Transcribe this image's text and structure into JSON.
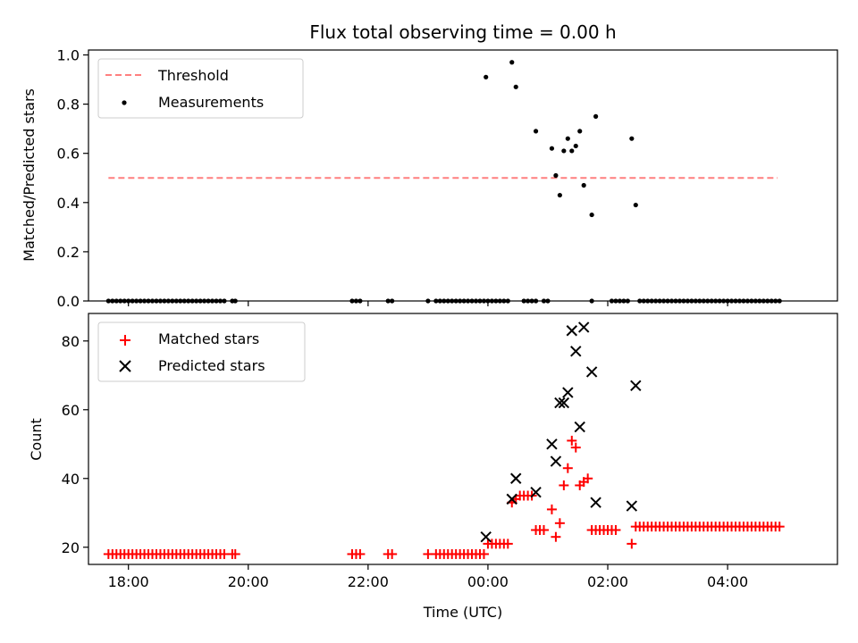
{
  "figure_title": "Flux total observing time = 0.00 h",
  "colors": {
    "threshold": "#ff7f7f",
    "measurements": "#000000",
    "matched": "#ff0000",
    "predicted": "#000000"
  },
  "chart_data": [
    {
      "type": "scatter",
      "panel": "top",
      "ylabel": "Matched/Predicted stars",
      "xlabel": "",
      "ylim": [
        0,
        1.02
      ],
      "yticks": [
        "0.0",
        "0.2",
        "0.4",
        "0.6",
        "0.8",
        "1.0"
      ],
      "xlim": [
        "17:20",
        "05:50"
      ],
      "legend_position": "top-left",
      "threshold": {
        "name": "Threshold",
        "value": 0.5,
        "x_start": "17:40",
        "x_end": "04:50",
        "style": "dashed"
      },
      "series": [
        {
          "name": "Measurements",
          "marker": "dot",
          "points": [
            [
              "17:40",
              0
            ],
            [
              "17:44",
              0
            ],
            [
              "17:48",
              0
            ],
            [
              "17:52",
              0
            ],
            [
              "17:56",
              0
            ],
            [
              "18:00",
              0
            ],
            [
              "18:04",
              0
            ],
            [
              "18:08",
              0
            ],
            [
              "18:12",
              0
            ],
            [
              "18:16",
              0
            ],
            [
              "18:20",
              0
            ],
            [
              "18:24",
              0
            ],
            [
              "18:28",
              0
            ],
            [
              "18:32",
              0
            ],
            [
              "18:36",
              0
            ],
            [
              "18:40",
              0
            ],
            [
              "18:44",
              0
            ],
            [
              "18:48",
              0
            ],
            [
              "18:52",
              0
            ],
            [
              "18:56",
              0
            ],
            [
              "19:00",
              0
            ],
            [
              "19:04",
              0
            ],
            [
              "19:08",
              0
            ],
            [
              "19:12",
              0
            ],
            [
              "19:16",
              0
            ],
            [
              "19:20",
              0
            ],
            [
              "19:24",
              0
            ],
            [
              "19:28",
              0
            ],
            [
              "19:32",
              0
            ],
            [
              "19:36",
              0
            ],
            [
              "19:44",
              0
            ],
            [
              "19:47",
              0
            ],
            [
              "21:44",
              0
            ],
            [
              "21:48",
              0
            ],
            [
              "21:52",
              0
            ],
            [
              "22:20",
              0
            ],
            [
              "22:24",
              0
            ],
            [
              "23:00",
              0
            ],
            [
              "23:08",
              0
            ],
            [
              "23:12",
              0
            ],
            [
              "23:16",
              0
            ],
            [
              "23:20",
              0
            ],
            [
              "23:24",
              0
            ],
            [
              "23:28",
              0
            ],
            [
              "23:32",
              0
            ],
            [
              "23:36",
              0
            ],
            [
              "23:40",
              0
            ],
            [
              "23:44",
              0
            ],
            [
              "23:48",
              0
            ],
            [
              "23:52",
              0
            ],
            [
              "23:56",
              0
            ],
            [
              "00:00",
              0
            ],
            [
              "00:04",
              0
            ],
            [
              "00:08",
              0
            ],
            [
              "00:12",
              0
            ],
            [
              "00:16",
              0
            ],
            [
              "00:20",
              0
            ],
            [
              "00:36",
              0
            ],
            [
              "00:40",
              0
            ],
            [
              "00:44",
              0
            ],
            [
              "00:48",
              0
            ],
            [
              "00:56",
              0
            ],
            [
              "01:00",
              0
            ],
            [
              "01:44",
              0
            ],
            [
              "02:04",
              0
            ],
            [
              "02:08",
              0
            ],
            [
              "02:12",
              0
            ],
            [
              "02:16",
              0
            ],
            [
              "02:20",
              0
            ],
            [
              "02:32",
              0
            ],
            [
              "02:36",
              0
            ],
            [
              "02:40",
              0
            ],
            [
              "02:44",
              0
            ],
            [
              "02:48",
              0
            ],
            [
              "02:52",
              0
            ],
            [
              "02:56",
              0
            ],
            [
              "03:00",
              0
            ],
            [
              "03:04",
              0
            ],
            [
              "03:08",
              0
            ],
            [
              "03:12",
              0
            ],
            [
              "03:16",
              0
            ],
            [
              "03:20",
              0
            ],
            [
              "03:24",
              0
            ],
            [
              "03:28",
              0
            ],
            [
              "03:32",
              0
            ],
            [
              "03:36",
              0
            ],
            [
              "03:40",
              0
            ],
            [
              "03:44",
              0
            ],
            [
              "03:48",
              0
            ],
            [
              "03:52",
              0
            ],
            [
              "03:56",
              0
            ],
            [
              "04:00",
              0
            ],
            [
              "04:04",
              0
            ],
            [
              "04:08",
              0
            ],
            [
              "04:12",
              0
            ],
            [
              "04:16",
              0
            ],
            [
              "04:20",
              0
            ],
            [
              "04:24",
              0
            ],
            [
              "04:28",
              0
            ],
            [
              "04:32",
              0
            ],
            [
              "04:36",
              0
            ],
            [
              "04:40",
              0
            ],
            [
              "04:44",
              0
            ],
            [
              "04:48",
              0
            ],
            [
              "04:52",
              0
            ],
            [
              "23:58",
              0.91
            ],
            [
              "00:24",
              0.97
            ],
            [
              "00:28",
              0.87
            ],
            [
              "00:48",
              0.69
            ],
            [
              "01:04",
              0.62
            ],
            [
              "01:08",
              0.51
            ],
            [
              "01:12",
              0.43
            ],
            [
              "01:16",
              0.61
            ],
            [
              "01:20",
              0.66
            ],
            [
              "01:24",
              0.61
            ],
            [
              "01:28",
              0.63
            ],
            [
              "01:32",
              0.69
            ],
            [
              "01:36",
              0.47
            ],
            [
              "01:44",
              0.35
            ],
            [
              "01:48",
              0.75
            ],
            [
              "02:24",
              0.66
            ],
            [
              "02:28",
              0.39
            ]
          ]
        }
      ]
    },
    {
      "type": "scatter",
      "panel": "bottom",
      "ylabel": "Count",
      "xlabel": "Time (UTC)",
      "ylim": [
        15,
        88
      ],
      "yticks": [
        "20",
        "40",
        "60",
        "80"
      ],
      "xlim": [
        "17:20",
        "05:50"
      ],
      "xticks": [
        "18:00",
        "20:00",
        "22:00",
        "00:00",
        "02:00",
        "04:00"
      ],
      "legend_position": "top-left",
      "series": [
        {
          "name": "Matched stars",
          "marker": "plus",
          "points": [
            [
              "17:40",
              18
            ],
            [
              "17:44",
              18
            ],
            [
              "17:48",
              18
            ],
            [
              "17:52",
              18
            ],
            [
              "17:56",
              18
            ],
            [
              "18:00",
              18
            ],
            [
              "18:04",
              18
            ],
            [
              "18:08",
              18
            ],
            [
              "18:12",
              18
            ],
            [
              "18:16",
              18
            ],
            [
              "18:20",
              18
            ],
            [
              "18:24",
              18
            ],
            [
              "18:28",
              18
            ],
            [
              "18:32",
              18
            ],
            [
              "18:36",
              18
            ],
            [
              "18:40",
              18
            ],
            [
              "18:44",
              18
            ],
            [
              "18:48",
              18
            ],
            [
              "18:52",
              18
            ],
            [
              "18:56",
              18
            ],
            [
              "19:00",
              18
            ],
            [
              "19:04",
              18
            ],
            [
              "19:08",
              18
            ],
            [
              "19:12",
              18
            ],
            [
              "19:16",
              18
            ],
            [
              "19:20",
              18
            ],
            [
              "19:24",
              18
            ],
            [
              "19:28",
              18
            ],
            [
              "19:32",
              18
            ],
            [
              "19:36",
              18
            ],
            [
              "19:44",
              18
            ],
            [
              "19:47",
              18
            ],
            [
              "21:44",
              18
            ],
            [
              "21:48",
              18
            ],
            [
              "21:52",
              18
            ],
            [
              "22:20",
              18
            ],
            [
              "22:24",
              18
            ],
            [
              "23:00",
              18
            ],
            [
              "23:08",
              18
            ],
            [
              "23:12",
              18
            ],
            [
              "23:16",
              18
            ],
            [
              "23:20",
              18
            ],
            [
              "23:24",
              18
            ],
            [
              "23:28",
              18
            ],
            [
              "23:32",
              18
            ],
            [
              "23:36",
              18
            ],
            [
              "23:40",
              18
            ],
            [
              "23:44",
              18
            ],
            [
              "23:48",
              18
            ],
            [
              "23:52",
              18
            ],
            [
              "23:56",
              18
            ],
            [
              "00:00",
              21
            ],
            [
              "00:04",
              21
            ],
            [
              "00:08",
              21
            ],
            [
              "00:12",
              21
            ],
            [
              "00:16",
              21
            ],
            [
              "00:20",
              21
            ],
            [
              "00:24",
              33
            ],
            [
              "00:28",
              34
            ],
            [
              "00:32",
              35
            ],
            [
              "00:36",
              35
            ],
            [
              "00:40",
              35
            ],
            [
              "00:44",
              35
            ],
            [
              "00:48",
              25
            ],
            [
              "00:52",
              25
            ],
            [
              "00:56",
              25
            ],
            [
              "01:04",
              31
            ],
            [
              "01:08",
              23
            ],
            [
              "01:12",
              27
            ],
            [
              "01:16",
              38
            ],
            [
              "01:20",
              43
            ],
            [
              "01:24",
              51
            ],
            [
              "01:28",
              49
            ],
            [
              "01:32",
              38
            ],
            [
              "01:36",
              39
            ],
            [
              "01:40",
              40
            ],
            [
              "01:44",
              25
            ],
            [
              "01:48",
              25
            ],
            [
              "01:52",
              25
            ],
            [
              "01:56",
              25
            ],
            [
              "02:00",
              25
            ],
            [
              "02:04",
              25
            ],
            [
              "02:08",
              25
            ],
            [
              "02:24",
              21
            ],
            [
              "02:28",
              26
            ],
            [
              "02:32",
              26
            ],
            [
              "02:36",
              26
            ],
            [
              "02:40",
              26
            ],
            [
              "02:44",
              26
            ],
            [
              "02:48",
              26
            ],
            [
              "02:52",
              26
            ],
            [
              "02:56",
              26
            ],
            [
              "03:00",
              26
            ],
            [
              "03:04",
              26
            ],
            [
              "03:08",
              26
            ],
            [
              "03:12",
              26
            ],
            [
              "03:16",
              26
            ],
            [
              "03:20",
              26
            ],
            [
              "03:24",
              26
            ],
            [
              "03:28",
              26
            ],
            [
              "03:32",
              26
            ],
            [
              "03:36",
              26
            ],
            [
              "03:40",
              26
            ],
            [
              "03:44",
              26
            ],
            [
              "03:48",
              26
            ],
            [
              "03:52",
              26
            ],
            [
              "03:56",
              26
            ],
            [
              "04:00",
              26
            ],
            [
              "04:04",
              26
            ],
            [
              "04:08",
              26
            ],
            [
              "04:12",
              26
            ],
            [
              "04:16",
              26
            ],
            [
              "04:20",
              26
            ],
            [
              "04:24",
              26
            ],
            [
              "04:28",
              26
            ],
            [
              "04:32",
              26
            ],
            [
              "04:36",
              26
            ],
            [
              "04:40",
              26
            ],
            [
              "04:44",
              26
            ],
            [
              "04:48",
              26
            ],
            [
              "04:52",
              26
            ]
          ]
        },
        {
          "name": "Predicted stars",
          "marker": "x",
          "points": [
            [
              "23:58",
              23
            ],
            [
              "00:24",
              34
            ],
            [
              "00:28",
              40
            ],
            [
              "00:48",
              36
            ],
            [
              "01:04",
              50
            ],
            [
              "01:08",
              45
            ],
            [
              "01:12",
              62
            ],
            [
              "01:16",
              62
            ],
            [
              "01:20",
              65
            ],
            [
              "01:24",
              83
            ],
            [
              "01:28",
              77
            ],
            [
              "01:32",
              55
            ],
            [
              "01:36",
              84
            ],
            [
              "01:44",
              71
            ],
            [
              "01:48",
              33
            ],
            [
              "02:24",
              32
            ],
            [
              "02:28",
              67
            ]
          ]
        }
      ]
    }
  ]
}
